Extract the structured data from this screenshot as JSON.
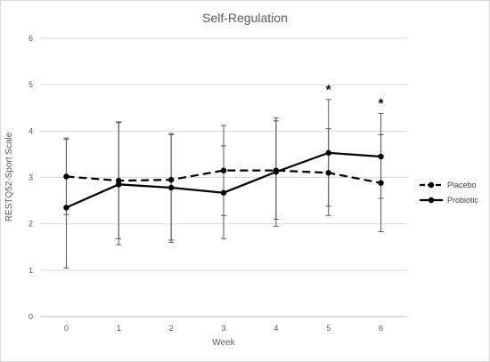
{
  "chart_data": {
    "type": "line",
    "title": "Self-Regulation",
    "xlabel": "Week",
    "ylabel": "RESTQ52-Sport Scale",
    "x": [
      0,
      1,
      2,
      3,
      4,
      5,
      6
    ],
    "xlim": [
      0,
      6
    ],
    "ylim": [
      0,
      6
    ],
    "yticks": [
      0,
      1,
      2,
      3,
      4,
      5,
      6
    ],
    "grid": true,
    "legend_position": "right",
    "series": [
      {
        "name": "Placebo",
        "line_style": "dashed",
        "color": "#000000",
        "values": [
          3.02,
          2.93,
          2.95,
          3.15,
          3.15,
          3.1,
          2.88
        ],
        "error_lower": [
          2.2,
          1.68,
          1.65,
          2.18,
          2.1,
          2.18,
          2.55
        ],
        "error_upper": [
          3.82,
          4.18,
          3.92,
          4.12,
          4.22,
          4.05,
          3.92
        ]
      },
      {
        "name": "Probiotic",
        "line_style": "solid",
        "color": "#000000",
        "values": [
          2.35,
          2.85,
          2.78,
          2.67,
          3.12,
          3.53,
          3.45
        ],
        "error_lower": [
          1.05,
          1.55,
          1.6,
          1.68,
          1.95,
          2.38,
          1.83
        ],
        "error_upper": [
          3.85,
          4.2,
          3.95,
          3.68,
          4.28,
          4.68,
          4.38
        ]
      }
    ],
    "annotations": [
      {
        "text": "*",
        "x": 5,
        "y": 4.9
      },
      {
        "text": "*",
        "x": 6,
        "y": 4.6
      }
    ]
  }
}
